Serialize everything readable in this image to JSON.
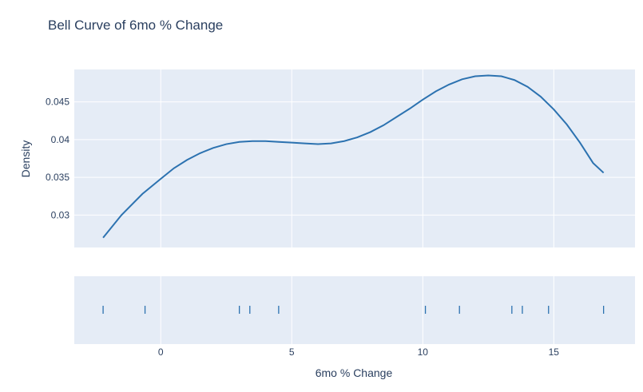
{
  "chart_data": {
    "type": "line",
    "title": "Bell Curve of 6mo % Change",
    "xlabel": "6mo % Change",
    "ylabel": "Density",
    "xlim": [
      -3.3,
      18.1
    ],
    "ylim": [
      0.0257,
      0.0493
    ],
    "x_ticks": [
      0,
      5,
      10,
      15
    ],
    "y_ticks": [
      0.03,
      0.035,
      0.04,
      0.045
    ],
    "y_tick_labels": [
      "0.03",
      "0.035",
      "0.04",
      "0.045"
    ],
    "grid": true,
    "line_color": "#2c72b0",
    "plot_bg": "#e5ecf6",
    "series": [
      {
        "x": [
          -2.2,
          -1.5,
          -0.7,
          0.0,
          0.5,
          1.0,
          1.5,
          2.0,
          2.5,
          3.0,
          3.5,
          4.0,
          4.5,
          5.0,
          5.5,
          6.0,
          6.5,
          7.0,
          7.5,
          8.0,
          8.5,
          9.0,
          9.5,
          10.0,
          10.5,
          11.0,
          11.5,
          12.0,
          12.5,
          13.0,
          13.5,
          14.0,
          14.5,
          15.0,
          15.5,
          16.0,
          16.5,
          16.9
        ],
        "y": [
          0.027,
          0.03,
          0.0328,
          0.0348,
          0.0362,
          0.0373,
          0.0382,
          0.0389,
          0.0394,
          0.0397,
          0.0398,
          0.0398,
          0.0397,
          0.0396,
          0.0395,
          0.0394,
          0.0395,
          0.0398,
          0.0403,
          0.041,
          0.0419,
          0.043,
          0.0441,
          0.0453,
          0.0464,
          0.0473,
          0.048,
          0.0484,
          0.0485,
          0.0484,
          0.0479,
          0.047,
          0.0457,
          0.044,
          0.042,
          0.0396,
          0.0369,
          0.0356
        ]
      }
    ],
    "rug": {
      "values": [
        -2.2,
        -0.6,
        3.0,
        3.4,
        4.5,
        10.1,
        11.4,
        13.4,
        13.8,
        14.8,
        16.9
      ]
    }
  }
}
